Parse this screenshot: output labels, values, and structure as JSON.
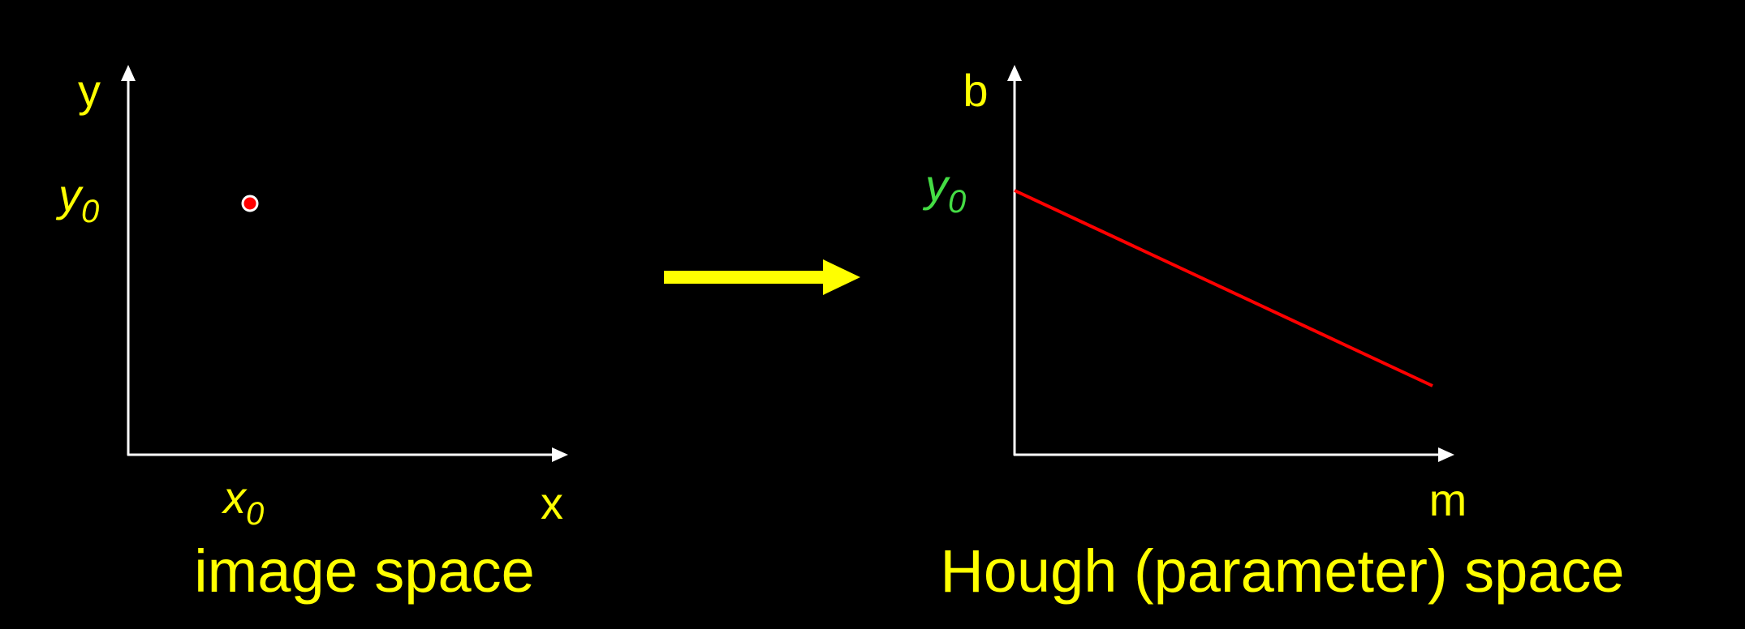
{
  "colors": {
    "background": "#000000",
    "axis": "#ffffff",
    "label": "#ffff00",
    "label_green": "#44dd44",
    "point": "#ff0000",
    "line": "#ff0000",
    "arrow": "#ffff00"
  },
  "image_space": {
    "title": "image space",
    "x_axis_label": "x",
    "y_axis_label": "y",
    "point_x_label": "x",
    "point_x_subscript": "0",
    "point_y_label": "y",
    "point_y_subscript": "0"
  },
  "arrow": {
    "direction": "right"
  },
  "hough_space": {
    "title": "Hough (parameter) space",
    "x_axis_label": "m",
    "y_axis_label": "b",
    "intercept_label": "y",
    "intercept_subscript": "0"
  }
}
